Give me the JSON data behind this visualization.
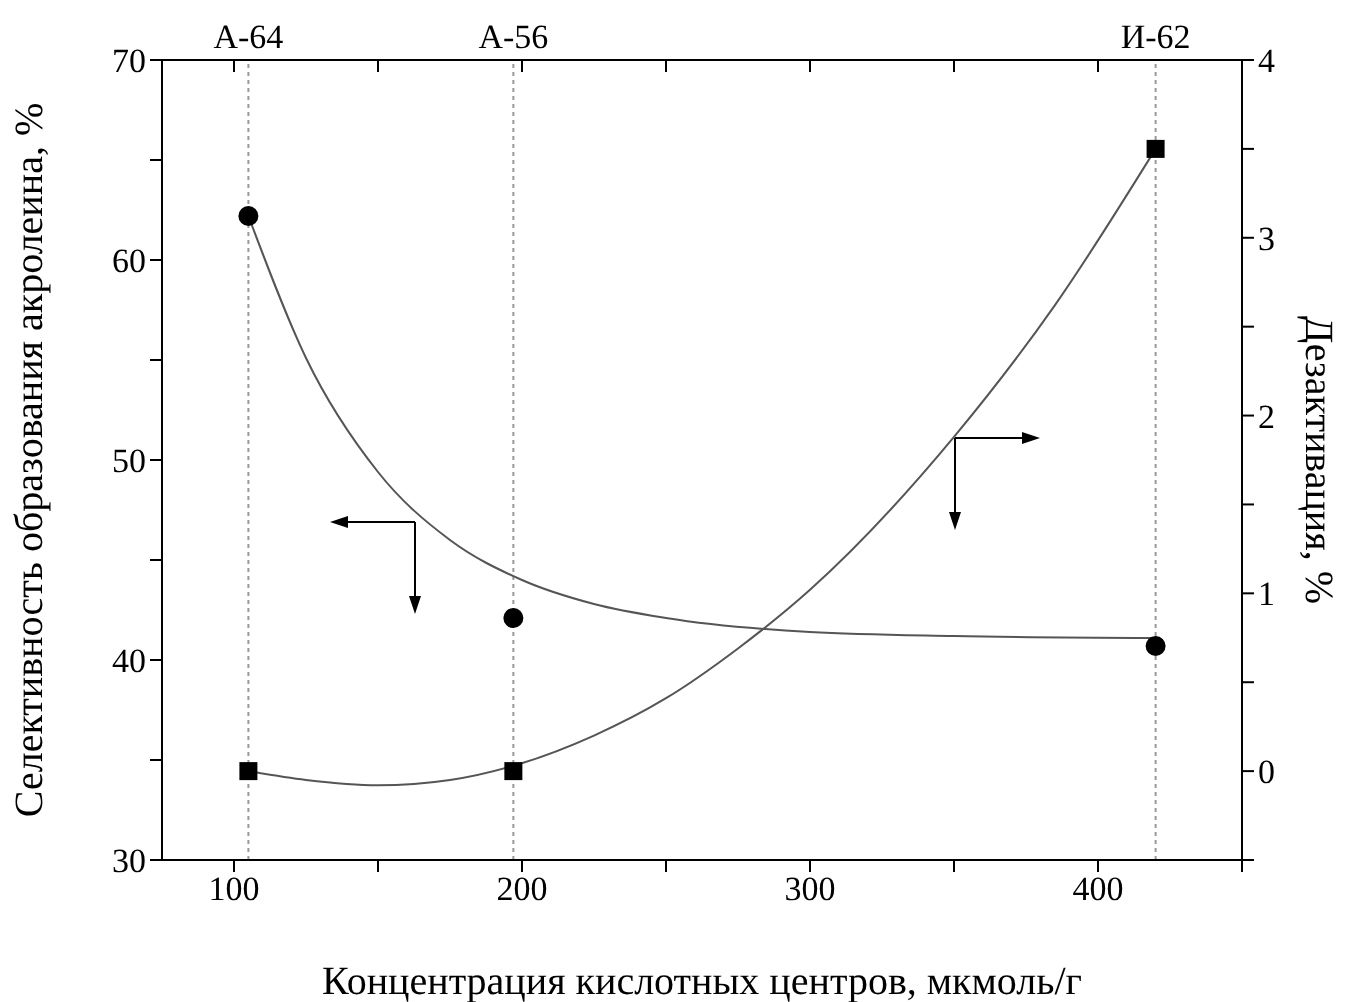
{
  "chart_data": {
    "type": "scatter",
    "xlabel": "Концентрация кислотных центров, мкмоль/г",
    "ylabel": "Селективность образования акролеина, %",
    "y2label": "Дезактивация, %",
    "xlim": [
      75,
      450
    ],
    "xticks": [
      100,
      {
        "value": 150,
        "label": null
      },
      200,
      {
        "value": 250,
        "label": null
      },
      300,
      {
        "value": 350,
        "label": null
      },
      400,
      {
        "value": 450,
        "label": null
      }
    ],
    "ylim": [
      30,
      70
    ],
    "yticks": [
      30,
      {
        "value": 35,
        "label": null
      },
      40,
      {
        "value": 45,
        "label": null
      },
      50,
      {
        "value": 55,
        "label": null
      },
      60,
      {
        "value": 65,
        "label": null
      },
      70
    ],
    "y2lim": [
      -0.5,
      4
    ],
    "y2ticks": [
      {
        "value": -0.5,
        "label": null
      },
      0,
      {
        "value": 0.5,
        "label": null
      },
      1,
      {
        "value": 1.5,
        "label": null
      },
      2,
      {
        "value": 2.5,
        "label": null
      },
      3,
      {
        "value": 3.5,
        "label": null
      },
      4
    ],
    "ref_lines": [
      {
        "axis": "x",
        "value": 105,
        "label": "А-64",
        "color": "#999999",
        "line_style": "dotted"
      },
      {
        "axis": "x",
        "value": 197,
        "label": "А-56",
        "color": "#999999",
        "line_style": "dotted"
      },
      {
        "axis": "x",
        "value": 420,
        "label": "И-62",
        "color": "#999999",
        "line_style": "dotted"
      }
    ],
    "series": [
      {
        "color": "#000000",
        "marker": "circle",
        "x": [
          105,
          197,
          420
        ],
        "values": [
          62.2,
          42.1,
          40.7
        ]
      },
      {
        "color": "#000000",
        "marker": "square",
        "axis": "y2",
        "x": [
          105,
          197,
          420
        ],
        "values": [
          0,
          0,
          3.5
        ]
      },
      {
        "type": "line",
        "color": "#555555",
        "marker": "none",
        "x": [
          105,
          125,
          150,
          175,
          200,
          225,
          250,
          300,
          350,
          420
        ],
        "values": [
          62.2,
          55.1,
          49.4,
          46.0,
          44.0,
          42.8,
          42.1,
          41.4,
          41.2,
          41.1
        ]
      },
      {
        "type": "line",
        "color": "#555555",
        "marker": "none",
        "axis": "y2",
        "x": [
          105,
          125,
          150,
          175,
          197,
          225,
          250,
          275,
          300,
          350,
          385,
          420
        ],
        "values": [
          0,
          -0.05,
          -0.08,
          -0.05,
          0.03,
          0.2,
          0.41,
          0.69,
          1.02,
          1.88,
          2.62,
          3.5
        ]
      }
    ]
  }
}
